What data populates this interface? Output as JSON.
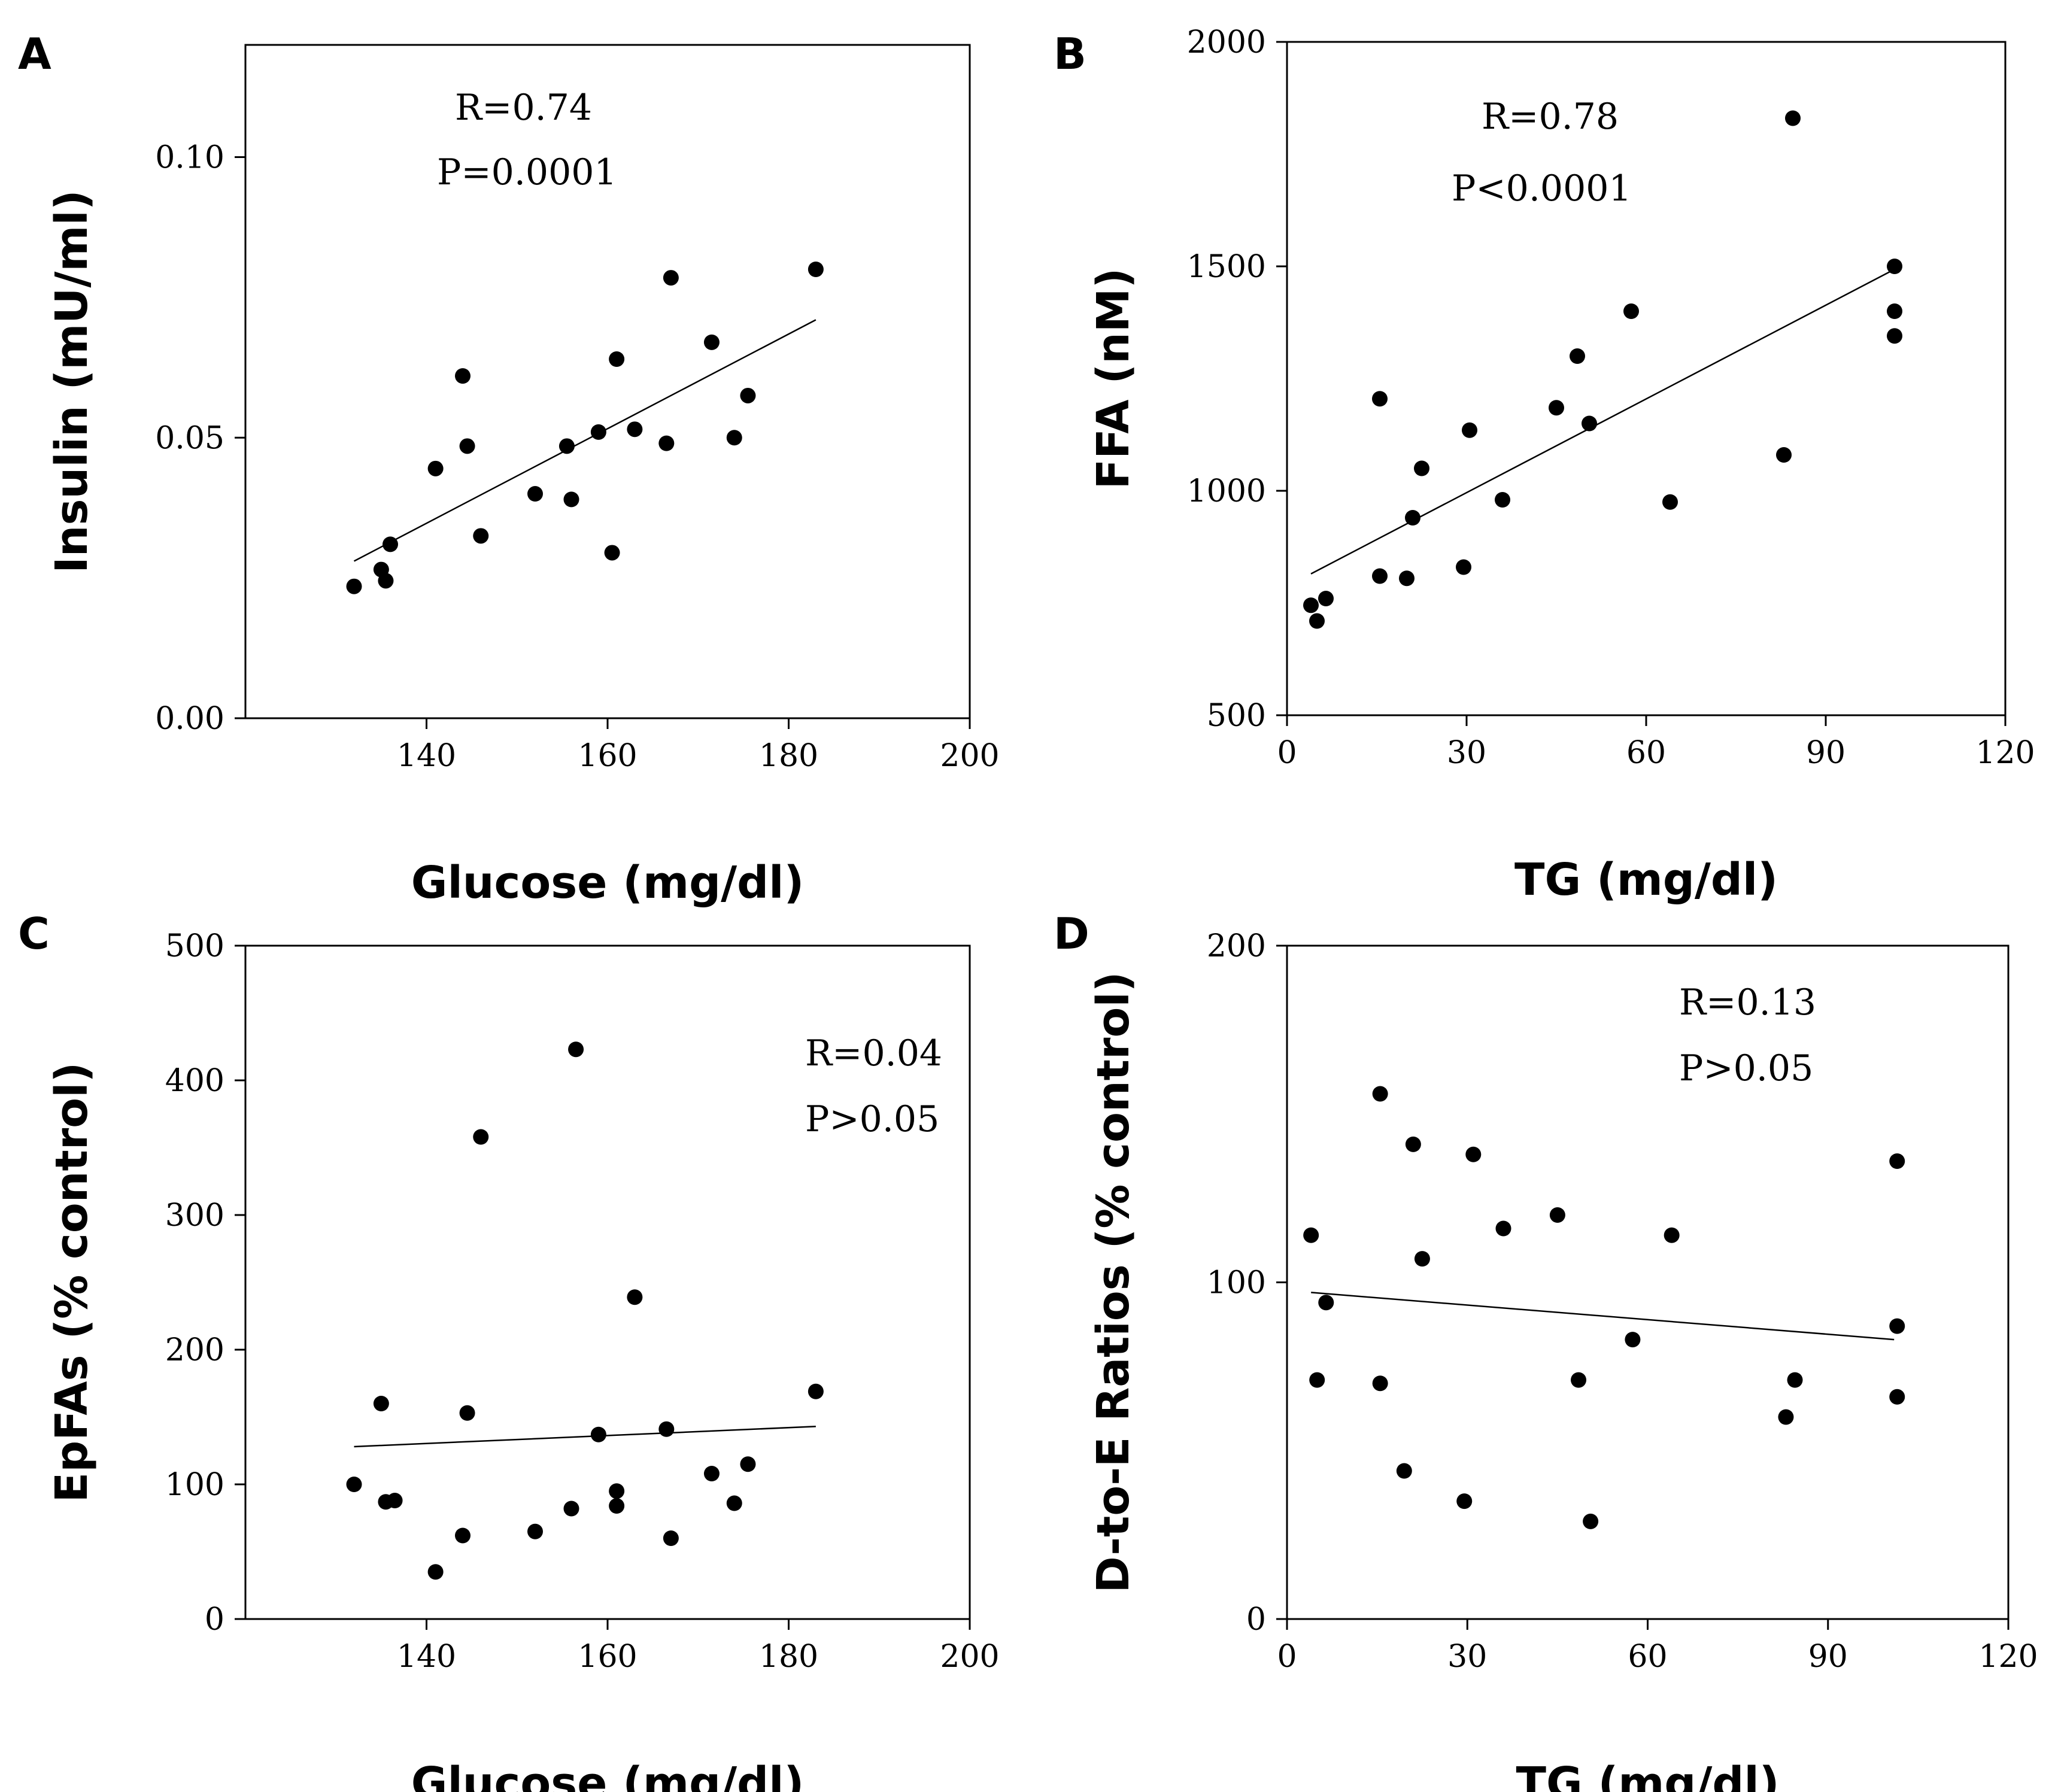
{
  "chart_data": [
    {
      "panel": "A",
      "type": "scatter",
      "xlabel": "Glucose (mg/dl)",
      "ylabel": "Insulin (mU/ml)",
      "xlim": [
        120,
        200
      ],
      "ylim": [
        0,
        0.12
      ],
      "xticks": [
        140,
        160,
        180,
        200
      ],
      "yticks": [
        0,
        0.05,
        0.1
      ],
      "xtick_labels": [
        "140",
        "160",
        "180",
        "200"
      ],
      "ytick_labels": [
        "0.00",
        "0.05",
        "0.10"
      ],
      "stats": [
        "R=0.74",
        "P=0.0001"
      ],
      "fit": {
        "x": [
          132,
          183
        ],
        "y": [
          0.028,
          0.071
        ]
      },
      "points": [
        [
          132,
          0.0235
        ],
        [
          135,
          0.0265
        ],
        [
          135.5,
          0.0245
        ],
        [
          136,
          0.031
        ],
        [
          141,
          0.0445
        ],
        [
          144,
          0.061
        ],
        [
          144.5,
          0.0485
        ],
        [
          146,
          0.0325
        ],
        [
          152,
          0.04
        ],
        [
          155.5,
          0.0485
        ],
        [
          156,
          0.039
        ],
        [
          159,
          0.051
        ],
        [
          160.5,
          0.0295
        ],
        [
          161,
          0.064
        ],
        [
          163,
          0.0515
        ],
        [
          166.5,
          0.049
        ],
        [
          167,
          0.0785
        ],
        [
          171.5,
          0.067
        ],
        [
          174,
          0.05
        ],
        [
          175.5,
          0.0575
        ],
        [
          183,
          0.08
        ]
      ]
    },
    {
      "panel": "B",
      "type": "scatter",
      "xlabel": "TG (mg/dl)",
      "ylabel": "FFA (nM)",
      "xlim": [
        0,
        120
      ],
      "ylim": [
        500,
        2000
      ],
      "xticks": [
        0,
        30,
        60,
        90,
        120
      ],
      "yticks": [
        500,
        1000,
        1500,
        2000
      ],
      "xtick_labels": [
        "0",
        "30",
        "60",
        "90",
        "120"
      ],
      "ytick_labels": [
        "500",
        "1000",
        "1500",
        "2000"
      ],
      "stats": [
        "R=0.78",
        "P<0.0001"
      ],
      "fit": {
        "x": [
          4,
          101
        ],
        "y": [
          815,
          1490
        ]
      },
      "points": [
        [
          4,
          745
        ],
        [
          5,
          710
        ],
        [
          6.5,
          760
        ],
        [
          15.5,
          810
        ],
        [
          15.5,
          1205
        ],
        [
          20,
          805
        ],
        [
          21,
          940
        ],
        [
          22.5,
          1050
        ],
        [
          29.5,
          830
        ],
        [
          30.5,
          1135
        ],
        [
          36,
          980
        ],
        [
          45,
          1185
        ],
        [
          48.5,
          1300
        ],
        [
          50.5,
          1150
        ],
        [
          57.5,
          1400
        ],
        [
          64,
          975
        ],
        [
          83,
          1080
        ],
        [
          84.5,
          1830
        ],
        [
          101.5,
          1500
        ],
        [
          101.5,
          1400
        ],
        [
          101.5,
          1345
        ]
      ]
    },
    {
      "panel": "C",
      "type": "scatter",
      "xlabel": "Glucose (mg/dl)",
      "ylabel": "EpFAs (% control)",
      "xlim": [
        120,
        200
      ],
      "ylim": [
        0,
        500
      ],
      "xticks": [
        140,
        160,
        180,
        200
      ],
      "yticks": [
        0,
        100,
        200,
        300,
        400,
        500
      ],
      "xtick_labels": [
        "140",
        "160",
        "180",
        "200"
      ],
      "ytick_labels": [
        "0",
        "100",
        "200",
        "300",
        "400",
        "500"
      ],
      "stats": [
        "R=0.04",
        "P>0.05"
      ],
      "fit": {
        "x": [
          132,
          183
        ],
        "y": [
          128,
          143
        ]
      },
      "points": [
        [
          132,
          100
        ],
        [
          135,
          160
        ],
        [
          135.5,
          87
        ],
        [
          136.5,
          88
        ],
        [
          141,
          35
        ],
        [
          144,
          62
        ],
        [
          144.5,
          153
        ],
        [
          146,
          358
        ],
        [
          152,
          65
        ],
        [
          156,
          82
        ],
        [
          156.5,
          423
        ],
        [
          159,
          137
        ],
        [
          161,
          84
        ],
        [
          161,
          95
        ],
        [
          163,
          239
        ],
        [
          166.5,
          141
        ],
        [
          167,
          60
        ],
        [
          171.5,
          108
        ],
        [
          174,
          86
        ],
        [
          175.5,
          115
        ],
        [
          183,
          169
        ]
      ]
    },
    {
      "panel": "D",
      "type": "scatter",
      "xlabel": "TG (mg/dl)",
      "ylabel": "D-to-E Ratios (% control)",
      "xlim": [
        0,
        120
      ],
      "ylim": [
        0,
        200
      ],
      "xticks": [
        0,
        30,
        60,
        90,
        120
      ],
      "yticks": [
        0,
        100,
        200
      ],
      "xtick_labels": [
        "0",
        "30",
        "60",
        "90",
        "120"
      ],
      "ytick_labels": [
        "0",
        "100",
        "200"
      ],
      "stats": [
        "R=0.13",
        "P>0.05"
      ],
      "fit": {
        "x": [
          4,
          101
        ],
        "y": [
          97,
          83
        ]
      },
      "points": [
        [
          4,
          114
        ],
        [
          5,
          71
        ],
        [
          6.5,
          94
        ],
        [
          15.5,
          156
        ],
        [
          15.5,
          70
        ],
        [
          19.5,
          44
        ],
        [
          21,
          141
        ],
        [
          22.5,
          107
        ],
        [
          29.5,
          35
        ],
        [
          31,
          138
        ],
        [
          36,
          116
        ],
        [
          45,
          120
        ],
        [
          48.5,
          71
        ],
        [
          50.5,
          29
        ],
        [
          57.5,
          83
        ],
        [
          64,
          114
        ],
        [
          83,
          60
        ],
        [
          84.5,
          71
        ],
        [
          101.5,
          136
        ],
        [
          101.5,
          87
        ],
        [
          101.5,
          66
        ]
      ]
    }
  ]
}
